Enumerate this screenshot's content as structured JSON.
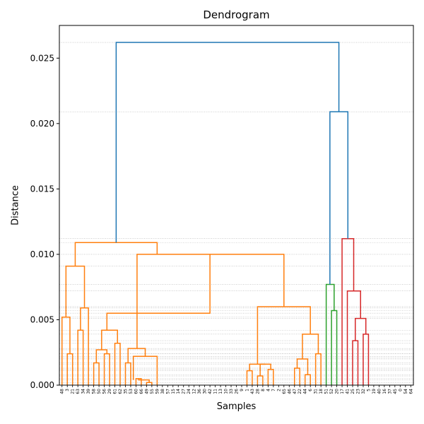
{
  "chart_data": {
    "type": "dendrogram",
    "title": "Dendrogram",
    "xlabel": "Samples",
    "ylabel": "Distance",
    "ylim": [
      0,
      0.0275
    ],
    "yticks": [
      "0.000",
      "0.005",
      "0.010",
      "0.015",
      "0.020",
      "0.025"
    ],
    "grid": "horizontal dotted lines at merge heights",
    "colors": {
      "above_threshold": "#1f77b4",
      "cluster_1": "#ff7f0e",
      "cluster_2": "#2ca02c",
      "cluster_3": "#d62728"
    },
    "leaf_labels": [
      "48",
      "3",
      "21",
      "63",
      "34",
      "39",
      "58",
      "50",
      "56",
      "29",
      "61",
      "62",
      "35",
      "53",
      "60",
      "66",
      "49",
      "55",
      "59",
      "38",
      "57",
      "15",
      "14",
      "27",
      "24",
      "12",
      "36",
      "30",
      "42",
      "11",
      "13",
      "10",
      "33",
      "26",
      "9",
      "1",
      "43",
      "28",
      "8",
      "4",
      "7",
      "2",
      "65",
      "46",
      "47",
      "22",
      "44",
      "6",
      "31",
      "18",
      "51",
      "52",
      "20",
      "17",
      "41",
      "25",
      "23",
      "32",
      "5",
      "19",
      "40",
      "16",
      "37",
      "45",
      "0",
      "54",
      "64"
    ],
    "cluster_merges": [
      {
        "cluster": 1,
        "height": 0.0109,
        "color": "#ff7f0e"
      },
      {
        "cluster": 2,
        "height": 0.0077,
        "color": "#2ca02c"
      },
      {
        "cluster": 3,
        "height": 0.0112,
        "color": "#d62728"
      }
    ],
    "top_links": [
      {
        "height": 0.0209,
        "color": "#1f77b4"
      },
      {
        "height": 0.0262,
        "color": "#1f77b4"
      }
    ],
    "merge_heights": [
      0.0262,
      0.0209,
      0.0112,
      0.0109,
      0.01,
      0.0091,
      0.0077,
      0.0072,
      0.006,
      0.0059,
      0.0057,
      0.0055,
      0.0052,
      0.0051,
      0.0042,
      0.0042,
      0.0039,
      0.0034,
      0.0032,
      0.0028,
      0.0027,
      0.0024,
      0.0024,
      0.0022,
      0.0021,
      0.002,
      0.0017,
      0.0016,
      0.0013,
      0.0012,
      0.0011,
      0.0008,
      0.0007,
      0.0005,
      0.0004,
      0.0002
    ]
  }
}
